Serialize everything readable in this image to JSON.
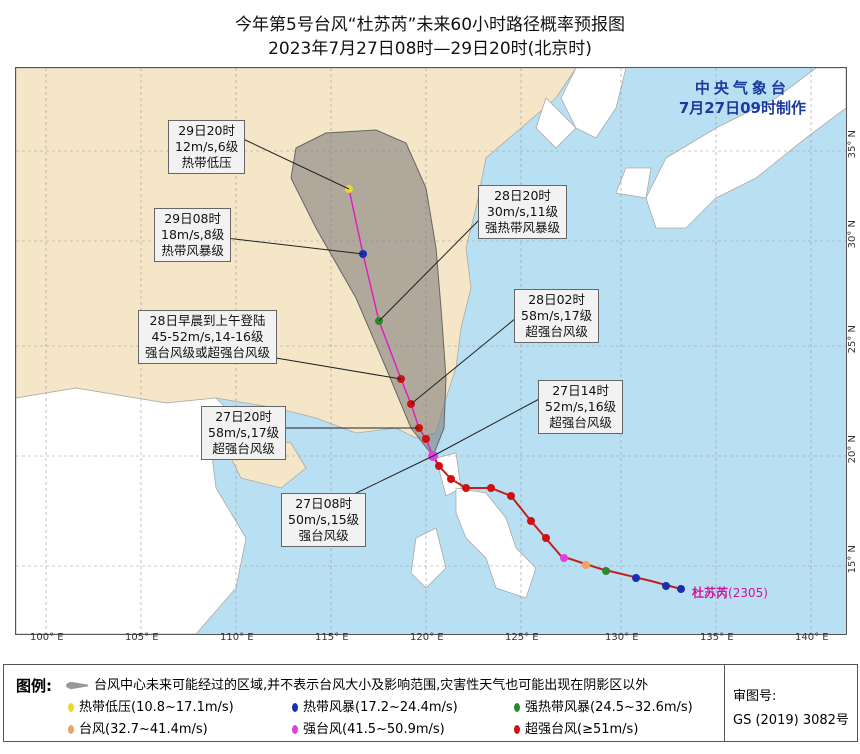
{
  "title": {
    "line1": "今年第5号台风“杜苏芮”未来60小时路径概率预报图",
    "line2": "2023年7月27日08时—29日20时(北京时)"
  },
  "agency": {
    "name": "中央气象台",
    "made": "7月27日09时制作"
  },
  "typhoon": {
    "name": "杜苏芮",
    "code": "(2305)"
  },
  "forecast_labels": [
    {
      "lines": [
        "29日20时",
        "12m/s,6级",
        "热带低压"
      ]
    },
    {
      "lines": [
        "29日08时",
        "18m/s,8级",
        "热带风暴级"
      ]
    },
    {
      "lines": [
        "28日20时",
        "30m/s,11级",
        "强热带风暴级"
      ]
    },
    {
      "lines": [
        "28日02时",
        "58m/s,17级",
        "超强台风级"
      ]
    },
    {
      "lines": [
        "28日早晨到上午登陆",
        "45-52m/s,14-16级",
        "强台风级或超强台风级"
      ]
    },
    {
      "lines": [
        "27日14时",
        "52m/s,16级",
        "超强台风级"
      ]
    },
    {
      "lines": [
        "27日20时",
        "58m/s,17级",
        "超强台风级"
      ]
    },
    {
      "lines": [
        "27日08时",
        "50m/s,15级",
        "强台风级"
      ]
    }
  ],
  "axes": {
    "lon": [
      "100° E",
      "105° E",
      "110° E",
      "115° E",
      "120° E",
      "125° E",
      "130° E",
      "135° E",
      "140° E"
    ],
    "lat": [
      "35° N",
      "30° N",
      "25° N",
      "20° N",
      "15° N"
    ]
  },
  "legend": {
    "heading": "图例:",
    "cone": "台风中心未来可能经过的区域,并不表示台风大小及影响范围,灾害性天气也可能出现在阴影区以外",
    "items": [
      {
        "label": "热带低压(10.8~17.1m/s)",
        "color": "#e8d830"
      },
      {
        "label": "热带风暴(17.2~24.4m/s)",
        "color": "#1a2fb0"
      },
      {
        "label": "强热带风暴(24.5~32.6m/s)",
        "color": "#2a8a2a"
      },
      {
        "label": "台风(32.7~41.4m/s)",
        "color": "#f0a060"
      },
      {
        "label": "强台风(41.5~50.9m/s)",
        "color": "#e040e0"
      },
      {
        "label": "超强台风(≥51m/s)",
        "color": "#d01010"
      }
    ]
  },
  "review": {
    "label": "审图号:",
    "number": "GS (2019) 3082号"
  }
}
